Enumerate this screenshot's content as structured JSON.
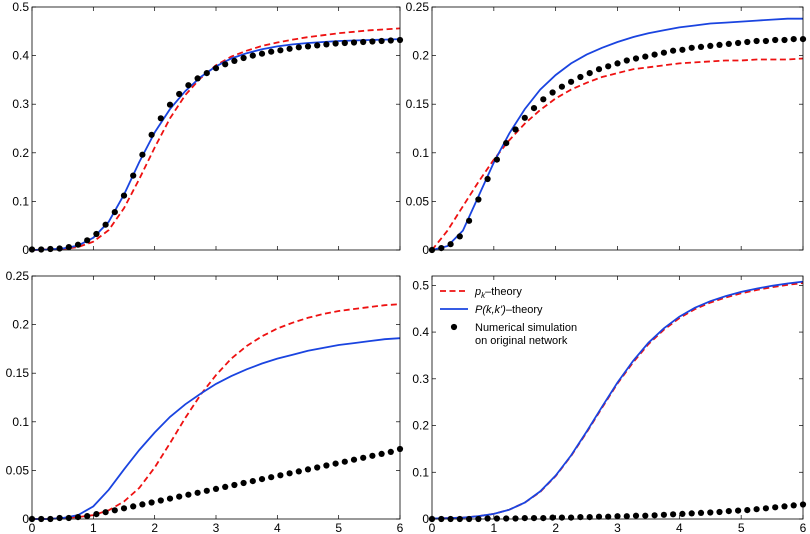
{
  "chart_data": [
    {
      "type": "line",
      "panel": "top-left",
      "xlim": [
        0,
        6
      ],
      "ylim": [
        0,
        0.5
      ],
      "xticks": [],
      "yticks": [
        0,
        0.1,
        0.2,
        0.3,
        0.4,
        0.5
      ],
      "ytick_labels": [
        "0",
        "0.1",
        "0.2",
        "0.3",
        "0.4",
        "0.5"
      ],
      "series": [
        {
          "name": "p_k-theory",
          "style": "dashed",
          "color": "#ee1111",
          "x": [
            0,
            0.25,
            0.5,
            0.75,
            1,
            1.25,
            1.5,
            1.75,
            2,
            2.25,
            2.5,
            2.75,
            3,
            3.25,
            3.5,
            3.75,
            4,
            4.25,
            4.5,
            4.75,
            5,
            5.25,
            5.5,
            5.75,
            6
          ],
          "y": [
            0,
            0.001,
            0.002,
            0.006,
            0.017,
            0.041,
            0.086,
            0.146,
            0.211,
            0.271,
            0.319,
            0.354,
            0.38,
            0.398,
            0.41,
            0.42,
            0.427,
            0.433,
            0.438,
            0.442,
            0.446,
            0.449,
            0.452,
            0.454,
            0.456
          ]
        },
        {
          "name": "P(k,k')-theory",
          "style": "solid",
          "color": "#1a44e0",
          "x": [
            0,
            0.25,
            0.5,
            0.75,
            1,
            1.25,
            1.5,
            1.75,
            2,
            2.25,
            2.5,
            2.75,
            3,
            3.25,
            3.5,
            3.75,
            4,
            4.25,
            4.5,
            4.75,
            5,
            5.25,
            5.5,
            5.75,
            6
          ],
          "y": [
            0,
            0.001,
            0.003,
            0.009,
            0.025,
            0.058,
            0.114,
            0.181,
            0.242,
            0.29,
            0.327,
            0.356,
            0.378,
            0.394,
            0.405,
            0.413,
            0.419,
            0.423,
            0.426,
            0.428,
            0.43,
            0.431,
            0.432,
            0.433,
            0.434
          ]
        },
        {
          "name": "Numerical simulation on original network",
          "style": "dots",
          "color": "#000000",
          "x": [
            0,
            0.15,
            0.3,
            0.45,
            0.6,
            0.75,
            0.9,
            1.05,
            1.2,
            1.35,
            1.5,
            1.65,
            1.8,
            1.95,
            2.1,
            2.25,
            2.4,
            2.55,
            2.7,
            2.85,
            3,
            3.15,
            3.3,
            3.45,
            3.6,
            3.75,
            3.9,
            4.05,
            4.2,
            4.35,
            4.5,
            4.65,
            4.8,
            4.95,
            5.1,
            5.25,
            5.4,
            5.55,
            5.7,
            5.85,
            6
          ],
          "y": [
            0.001,
            0.001,
            0.002,
            0.003,
            0.006,
            0.011,
            0.02,
            0.033,
            0.052,
            0.078,
            0.112,
            0.153,
            0.196,
            0.237,
            0.271,
            0.299,
            0.321,
            0.339,
            0.353,
            0.364,
            0.374,
            0.382,
            0.389,
            0.395,
            0.4,
            0.404,
            0.408,
            0.411,
            0.414,
            0.417,
            0.419,
            0.421,
            0.423,
            0.425,
            0.426,
            0.427,
            0.428,
            0.429,
            0.43,
            0.431,
            0.432
          ]
        }
      ]
    },
    {
      "type": "line",
      "panel": "top-right",
      "xlim": [
        0,
        6
      ],
      "ylim": [
        0,
        0.25
      ],
      "xticks": [],
      "yticks": [
        0,
        0.05,
        0.1,
        0.15,
        0.2,
        0.25
      ],
      "ytick_labels": [
        "0",
        "0.05",
        "0.1",
        "0.15",
        "0.2",
        "0.25"
      ],
      "series": [
        {
          "name": "p_k-theory",
          "style": "dashed",
          "color": "#ee1111",
          "x": [
            0,
            0.25,
            0.5,
            0.75,
            1,
            1.25,
            1.5,
            1.75,
            2,
            2.25,
            2.5,
            2.75,
            3,
            3.25,
            3.5,
            3.75,
            4,
            4.25,
            4.5,
            4.75,
            5,
            5.25,
            5.5,
            5.75,
            6
          ],
          "y": [
            0,
            0.02,
            0.045,
            0.07,
            0.093,
            0.113,
            0.13,
            0.144,
            0.156,
            0.165,
            0.172,
            0.178,
            0.182,
            0.186,
            0.188,
            0.19,
            0.192,
            0.193,
            0.194,
            0.195,
            0.195,
            0.196,
            0.196,
            0.196,
            0.197
          ]
        },
        {
          "name": "P(k,k')-theory",
          "style": "solid",
          "color": "#1a44e0",
          "x": [
            0,
            0.25,
            0.5,
            0.75,
            1,
            1.25,
            1.5,
            1.75,
            2,
            2.25,
            2.5,
            2.75,
            3,
            3.25,
            3.5,
            3.75,
            4,
            4.25,
            4.5,
            4.75,
            5,
            5.25,
            5.5,
            5.75,
            6
          ],
          "y": [
            0,
            0.004,
            0.02,
            0.055,
            0.09,
            0.12,
            0.145,
            0.165,
            0.18,
            0.192,
            0.201,
            0.208,
            0.214,
            0.219,
            0.223,
            0.226,
            0.229,
            0.231,
            0.233,
            0.234,
            0.235,
            0.236,
            0.237,
            0.238,
            0.238
          ]
        },
        {
          "name": "Numerical simulation on original network",
          "style": "dots",
          "color": "#000000",
          "x": [
            0,
            0.15,
            0.3,
            0.45,
            0.6,
            0.75,
            0.9,
            1.05,
            1.2,
            1.35,
            1.5,
            1.65,
            1.8,
            1.95,
            2.1,
            2.25,
            2.4,
            2.55,
            2.7,
            2.85,
            3,
            3.15,
            3.3,
            3.45,
            3.6,
            3.75,
            3.9,
            4.05,
            4.2,
            4.35,
            4.5,
            4.65,
            4.8,
            4.95,
            5.1,
            5.25,
            5.4,
            5.55,
            5.7,
            5.85,
            6
          ],
          "y": [
            0,
            0.002,
            0.006,
            0.014,
            0.03,
            0.052,
            0.073,
            0.093,
            0.11,
            0.124,
            0.136,
            0.146,
            0.155,
            0.162,
            0.168,
            0.173,
            0.178,
            0.182,
            0.186,
            0.189,
            0.192,
            0.195,
            0.197,
            0.199,
            0.201,
            0.203,
            0.205,
            0.206,
            0.208,
            0.209,
            0.21,
            0.211,
            0.212,
            0.213,
            0.214,
            0.215,
            0.215,
            0.216,
            0.216,
            0.217,
            0.217
          ]
        }
      ]
    },
    {
      "type": "line",
      "panel": "bottom-left",
      "xlim": [
        0,
        6
      ],
      "ylim": [
        0,
        0.25
      ],
      "xticks": [
        0,
        1,
        2,
        3,
        4,
        5,
        6
      ],
      "xtick_labels": [
        "0",
        "1",
        "2",
        "3",
        "4",
        "5",
        "6"
      ],
      "yticks": [
        0,
        0.05,
        0.1,
        0.15,
        0.2,
        0.25
      ],
      "ytick_labels": [
        "0",
        "0.05",
        "0.1",
        "0.15",
        "0.2",
        "0.25"
      ],
      "series": [
        {
          "name": "p_k-theory",
          "style": "dashed",
          "color": "#ee1111",
          "x": [
            0,
            0.25,
            0.5,
            0.75,
            1,
            1.25,
            1.5,
            1.75,
            2,
            2.25,
            2.5,
            2.75,
            3,
            3.25,
            3.5,
            3.75,
            4,
            4.25,
            4.5,
            4.75,
            5,
            5.25,
            5.5,
            5.75,
            6
          ],
          "y": [
            0,
            0,
            0.001,
            0.002,
            0.004,
            0.009,
            0.018,
            0.032,
            0.053,
            0.078,
            0.104,
            0.128,
            0.148,
            0.165,
            0.178,
            0.188,
            0.196,
            0.202,
            0.207,
            0.211,
            0.214,
            0.216,
            0.218,
            0.22,
            0.221
          ]
        },
        {
          "name": "P(k,k')-theory",
          "style": "solid",
          "color": "#1a44e0",
          "x": [
            0,
            0.25,
            0.5,
            0.75,
            1,
            1.25,
            1.5,
            1.75,
            2,
            2.25,
            2.5,
            2.75,
            3,
            3.25,
            3.5,
            3.75,
            4,
            4.25,
            4.5,
            4.75,
            5,
            5.25,
            5.5,
            5.75,
            6
          ],
          "y": [
            0,
            0,
            0.001,
            0.004,
            0.013,
            0.03,
            0.051,
            0.071,
            0.089,
            0.105,
            0.118,
            0.129,
            0.139,
            0.147,
            0.154,
            0.16,
            0.165,
            0.169,
            0.173,
            0.176,
            0.179,
            0.181,
            0.183,
            0.185,
            0.186
          ]
        },
        {
          "name": "Numerical simulation on original network",
          "style": "dots",
          "color": "#000000",
          "x": [
            0,
            0.15,
            0.3,
            0.45,
            0.6,
            0.75,
            0.9,
            1.05,
            1.2,
            1.35,
            1.5,
            1.65,
            1.8,
            1.95,
            2.1,
            2.25,
            2.4,
            2.55,
            2.7,
            2.85,
            3,
            3.15,
            3.3,
            3.45,
            3.6,
            3.75,
            3.9,
            4.05,
            4.2,
            4.35,
            4.5,
            4.65,
            4.8,
            4.95,
            5.1,
            5.25,
            5.4,
            5.55,
            5.7,
            5.85,
            6
          ],
          "y": [
            0,
            0,
            0,
            0.001,
            0.001,
            0.002,
            0.003,
            0.005,
            0.007,
            0.009,
            0.011,
            0.013,
            0.015,
            0.017,
            0.019,
            0.021,
            0.023,
            0.025,
            0.027,
            0.029,
            0.031,
            0.033,
            0.035,
            0.037,
            0.039,
            0.041,
            0.043,
            0.045,
            0.047,
            0.049,
            0.051,
            0.053,
            0.055,
            0.057,
            0.059,
            0.061,
            0.063,
            0.065,
            0.067,
            0.069,
            0.072
          ]
        }
      ]
    },
    {
      "type": "line",
      "panel": "bottom-right",
      "xlim": [
        0,
        6
      ],
      "ylim": [
        0,
        0.52
      ],
      "xticks": [
        0,
        1,
        2,
        3,
        4,
        5,
        6
      ],
      "xtick_labels": [
        "0",
        "1",
        "2",
        "3",
        "4",
        "5",
        "6"
      ],
      "yticks": [
        0,
        0.1,
        0.2,
        0.3,
        0.4,
        0.5
      ],
      "ytick_labels": [
        "0",
        "0.1",
        "0.2",
        "0.3",
        "0.4",
        "0.5"
      ],
      "legend": {
        "placement": "top-left",
        "entries": [
          {
            "label_main": "p",
            "label_sub": "k",
            "label_rest": "–theory",
            "style": "dashed",
            "color": "#ee1111"
          },
          {
            "label_main": "P(k,k')",
            "label_sub": "",
            "label_rest": "–theory",
            "style": "solid",
            "color": "#1a44e0"
          },
          {
            "label_main": "Numerical simulation",
            "label_line2": "on original network",
            "style": "dots",
            "color": "#000000"
          }
        ]
      },
      "series": [
        {
          "name": "p_k-theory",
          "style": "dashed",
          "color": "#ee1111",
          "x": [
            0,
            0.25,
            0.5,
            0.75,
            1,
            1.25,
            1.5,
            1.75,
            2,
            2.25,
            2.5,
            2.75,
            3,
            3.25,
            3.5,
            3.75,
            4,
            4.25,
            4.5,
            4.75,
            5,
            5.25,
            5.5,
            5.75,
            6
          ],
          "y": [
            0.001,
            0.002,
            0.003,
            0.006,
            0.011,
            0.02,
            0.035,
            0.058,
            0.092,
            0.135,
            0.185,
            0.238,
            0.29,
            0.335,
            0.374,
            0.405,
            0.43,
            0.449,
            0.463,
            0.474,
            0.483,
            0.49,
            0.496,
            0.501,
            0.505
          ]
        },
        {
          "name": "P(k,k')-theory",
          "style": "solid",
          "color": "#1a44e0",
          "x": [
            0,
            0.25,
            0.5,
            0.75,
            1,
            1.25,
            1.5,
            1.75,
            2,
            2.25,
            2.5,
            2.75,
            3,
            3.25,
            3.5,
            3.75,
            4,
            4.25,
            4.5,
            4.75,
            5,
            5.25,
            5.5,
            5.75,
            6
          ],
          "y": [
            0.001,
            0.002,
            0.003,
            0.006,
            0.011,
            0.02,
            0.035,
            0.059,
            0.093,
            0.136,
            0.187,
            0.24,
            0.292,
            0.338,
            0.377,
            0.408,
            0.433,
            0.452,
            0.466,
            0.477,
            0.486,
            0.493,
            0.499,
            0.504,
            0.508
          ]
        },
        {
          "name": "Numerical simulation on original network",
          "style": "dots",
          "color": "#000000",
          "x": [
            0,
            0.15,
            0.3,
            0.45,
            0.6,
            0.75,
            0.9,
            1.05,
            1.2,
            1.35,
            1.5,
            1.65,
            1.8,
            1.95,
            2.1,
            2.25,
            2.4,
            2.55,
            2.7,
            2.85,
            3,
            3.15,
            3.3,
            3.45,
            3.6,
            3.75,
            3.9,
            4.05,
            4.2,
            4.35,
            4.5,
            4.65,
            4.8,
            4.95,
            5.1,
            5.25,
            5.4,
            5.55,
            5.7,
            5.85,
            6
          ],
          "y": [
            0,
            0,
            0,
            0,
            0,
            0,
            0.001,
            0.001,
            0.001,
            0.001,
            0.002,
            0.002,
            0.002,
            0.003,
            0.003,
            0.003,
            0.004,
            0.004,
            0.005,
            0.005,
            0.006,
            0.006,
            0.007,
            0.007,
            0.008,
            0.009,
            0.01,
            0.011,
            0.012,
            0.013,
            0.014,
            0.015,
            0.017,
            0.018,
            0.019,
            0.021,
            0.023,
            0.025,
            0.027,
            0.029,
            0.031
          ]
        }
      ]
    }
  ]
}
